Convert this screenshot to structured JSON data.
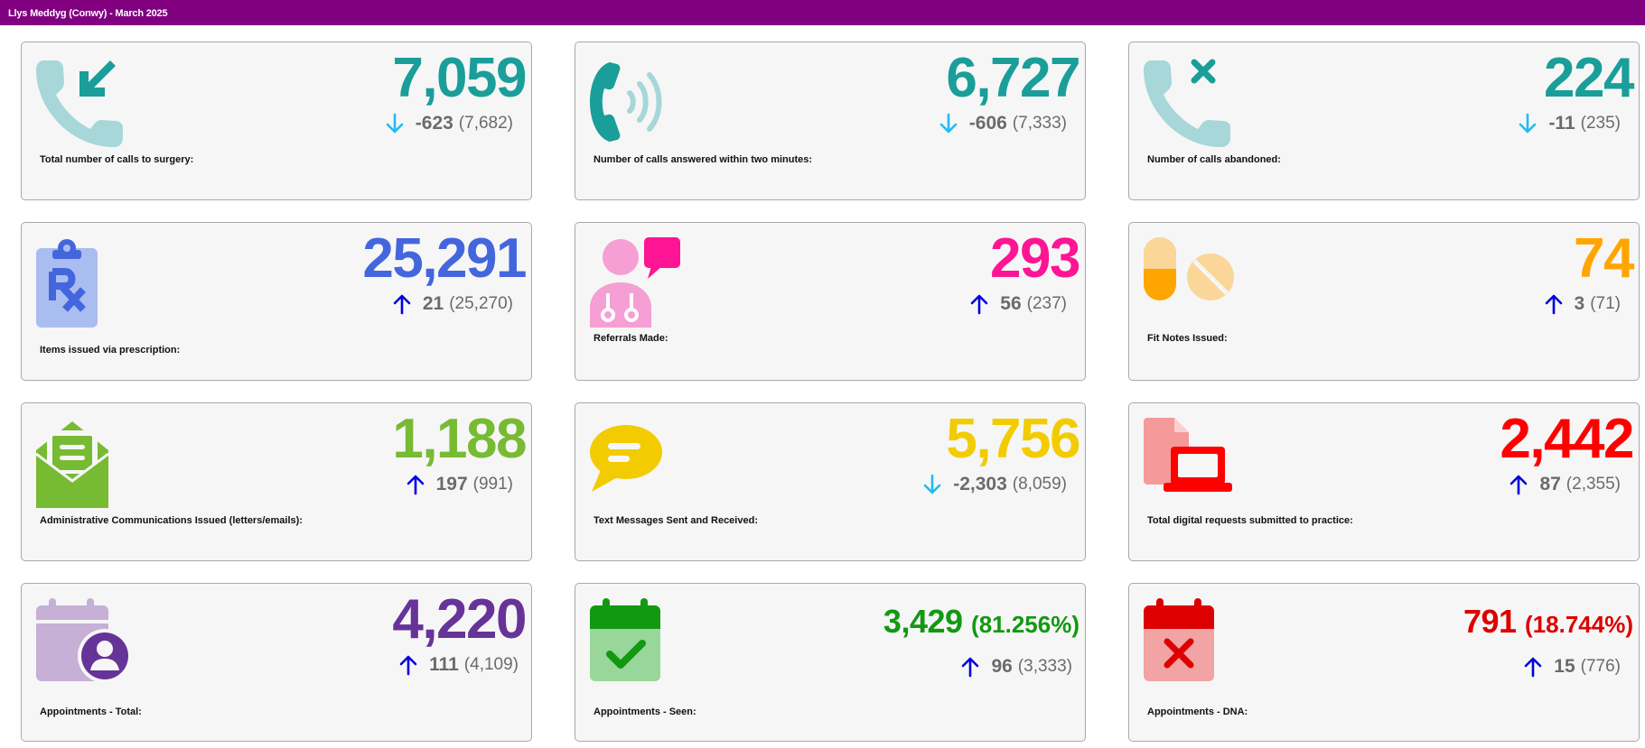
{
  "window": {
    "title": "Llys Meddyg (Conwy) - March 2025"
  },
  "colors": {
    "title_bar": "#800080",
    "teal": "#1a9e99",
    "blue": "#4466dd",
    "pink": "#ff1493",
    "orange": "#ffa500",
    "green": "#77bb33",
    "yellow": "#f2cc00",
    "red": "#ff0000",
    "purple": "#663399",
    "dark_green": "#119911",
    "dark_red": "#dd0000",
    "arrow_up": "#0000dd",
    "arrow_down": "#22bbee",
    "delta_text": "#6b6b6b"
  },
  "cards": [
    {
      "id": "calls-total",
      "icon": "incoming-call-icon",
      "value": "7,059",
      "change": "-623",
      "previous": "(7,682)",
      "direction": "down",
      "label": "Total number of calls to surgery:"
    },
    {
      "id": "calls-answered",
      "icon": "phone-ringing-icon",
      "value": "6,727",
      "change": "-606",
      "previous": "(7,333)",
      "direction": "down",
      "label": "Number of calls answered within two minutes:"
    },
    {
      "id": "calls-abandoned",
      "icon": "missed-call-icon",
      "value": "224",
      "change": "-11",
      "previous": "(235)",
      "direction": "down",
      "label": "Number of calls abandoned:"
    },
    {
      "id": "prescriptions",
      "icon": "prescription-icon",
      "value": "25,291",
      "change": "21",
      "previous": "(25,270)",
      "direction": "up",
      "label": "Items issued via prescription:"
    },
    {
      "id": "referrals",
      "icon": "doctor-chat-icon",
      "value": "293",
      "change": "56",
      "previous": "(237)",
      "direction": "up",
      "label": "Referrals Made:"
    },
    {
      "id": "fit-notes",
      "icon": "pills-icon",
      "value": "74",
      "change": "3",
      "previous": "(71)",
      "direction": "up",
      "label": "Fit Notes Issued:"
    },
    {
      "id": "admin-comms",
      "icon": "open-envelope-icon",
      "value": "1,188",
      "change": "197",
      "previous": "(991)",
      "direction": "up",
      "label": "Administrative Communications Issued (letters/emails):"
    },
    {
      "id": "text-messages",
      "icon": "speech-bubble-icon",
      "value": "5,756",
      "change": "-2,303",
      "previous": "(8,059)",
      "direction": "down",
      "label": "Text Messages Sent and Received:"
    },
    {
      "id": "digital-requests",
      "icon": "file-laptop-icon",
      "value": "2,442",
      "change": "87",
      "previous": "(2,355)",
      "direction": "up",
      "label": "Total digital requests submitted to practice:"
    },
    {
      "id": "appts-total",
      "icon": "calendar-user-icon",
      "value": "4,220",
      "change": "111",
      "previous": "(4,109)",
      "direction": "up",
      "label": "Appointments - Total:"
    },
    {
      "id": "appts-seen",
      "icon": "calendar-check-icon",
      "value": "3,429",
      "percent": "(81.256%)",
      "change": "96",
      "previous": "(3,333)",
      "direction": "up",
      "label": "Appointments - Seen:"
    },
    {
      "id": "appts-dna",
      "icon": "calendar-x-icon",
      "value": "791",
      "percent": "(18.744%)",
      "change": "15",
      "previous": "(776)",
      "direction": "up",
      "label": "Appointments - DNA:"
    }
  ]
}
